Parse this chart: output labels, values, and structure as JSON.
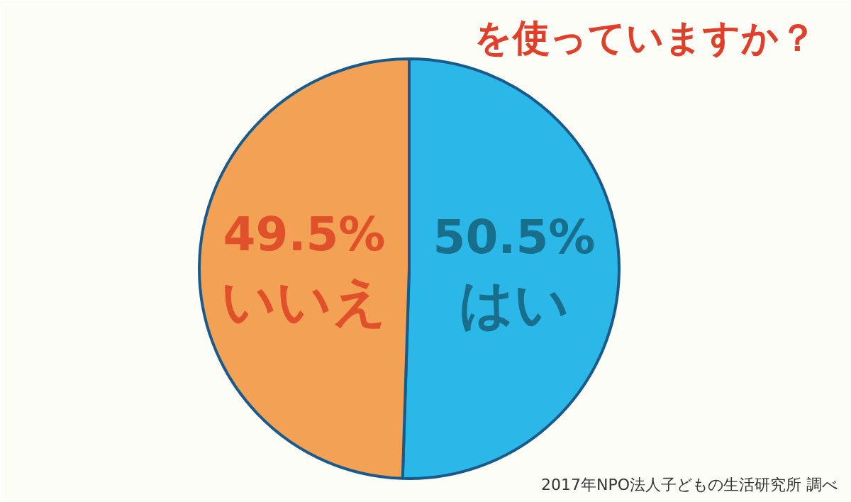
{
  "chart_data": {
    "type": "pie",
    "title": "を使っていますか？",
    "categories": [
      "はい",
      "いいえ"
    ],
    "values": [
      50.5,
      49.5
    ],
    "colors": [
      "#2bb8e8",
      "#f2a155"
    ],
    "value_labels": [
      "50.5%",
      "49.5%"
    ],
    "annotations": [
      "2017年NPO法人子どもの生活研究所 調べ"
    ]
  }
}
